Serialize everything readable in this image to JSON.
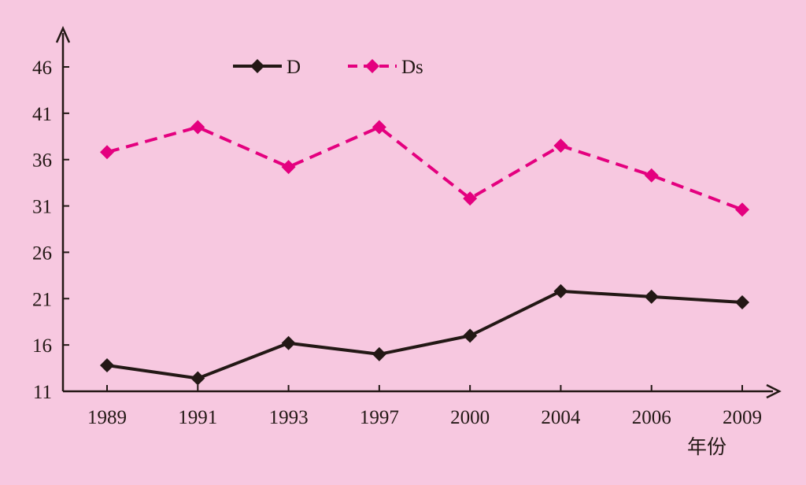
{
  "chart_data": {
    "type": "line",
    "categories": [
      "1989",
      "1991",
      "1993",
      "1997",
      "2000",
      "2004",
      "2006",
      "2009"
    ],
    "series": [
      {
        "name": "D",
        "values": [
          13.8,
          12.4,
          16.2,
          15.0,
          17.0,
          21.8,
          21.2,
          20.6
        ],
        "color": "#231815",
        "style": "solid"
      },
      {
        "name": "Ds",
        "values": [
          36.8,
          39.5,
          35.2,
          39.5,
          31.8,
          37.5,
          34.3,
          30.6
        ],
        "color": "#e4007f",
        "style": "dashed"
      }
    ],
    "yticks": [
      11,
      16,
      21,
      26,
      31,
      36,
      41,
      46
    ],
    "ylim": [
      11,
      49
    ],
    "xlabel": "年份",
    "ylabel": "",
    "legend": "top-left",
    "grid": false
  }
}
